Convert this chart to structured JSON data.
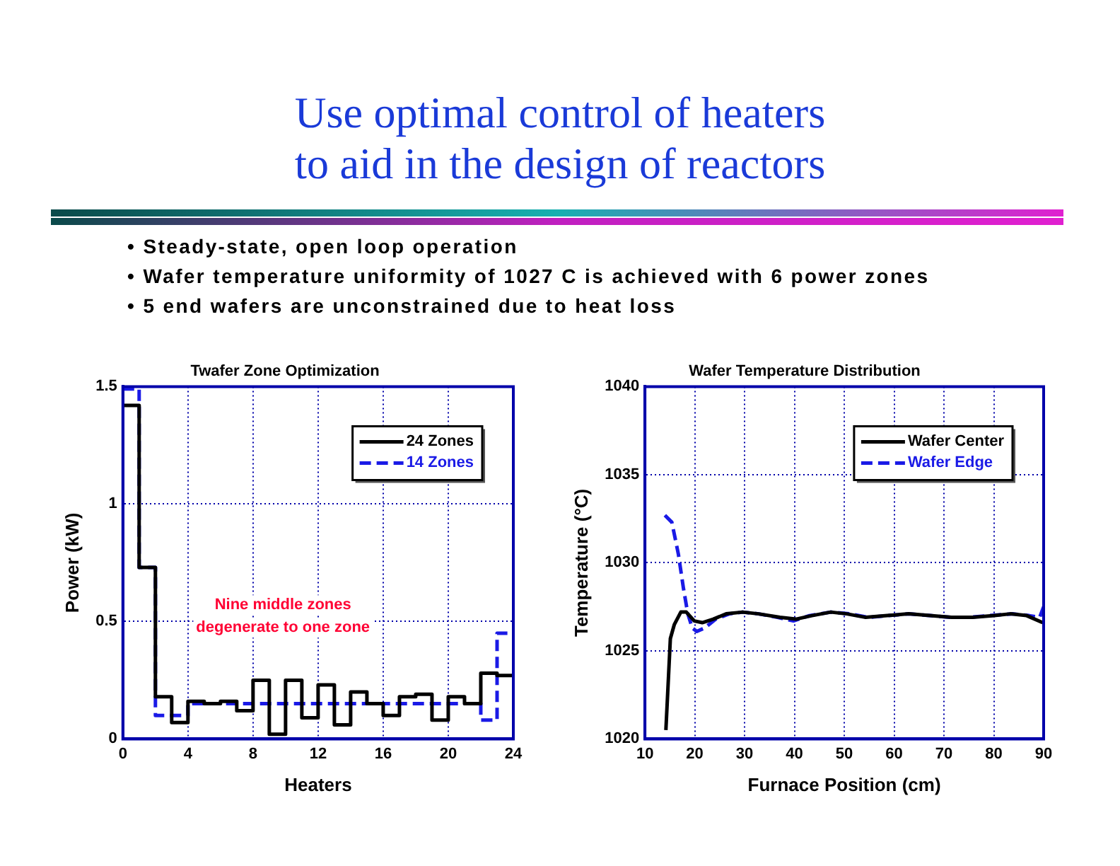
{
  "chart_data": [
    {
      "type": "other",
      "title": "Use optimal control of heaters\nto aid in the design of reactors",
      "annotations": [
        "• Steady-state, open loop operation",
        "• Wafer temperature uniformity of 1027 C is achieved with 6 power zones",
        "• 5 end wafers are unconstrained due to heat loss"
      ]
    },
    {
      "type": "step",
      "title": "Twafer Zone Optimization",
      "xlabel": "Heaters",
      "ylabel": "Power (kW)",
      "x": [
        0,
        1,
        2,
        3,
        4,
        5,
        6,
        7,
        8,
        9,
        10,
        11,
        12,
        13,
        14,
        15,
        16,
        17,
        18,
        19,
        20,
        21,
        22,
        23,
        24
      ],
      "series": [
        {
          "name": "24 Zones",
          "color": "#000000",
          "line_style": "solid",
          "values": [
            1.42,
            0.73,
            0.18,
            0.07,
            0.16,
            0.15,
            0.16,
            0.12,
            0.25,
            0.02,
            0.25,
            0.09,
            0.23,
            0.06,
            0.2,
            0.15,
            0.1,
            0.18,
            0.19,
            0.08,
            0.18,
            0.15,
            0.28,
            0.27,
            0.27
          ]
        },
        {
          "name": "14 Zones",
          "color": "#1a1ae6",
          "line_style": "dashed",
          "values": [
            1.49,
            0.73,
            0.1,
            0.1,
            0.15,
            0.15,
            0.15,
            0.15,
            0.15,
            0.15,
            0.15,
            0.15,
            0.15,
            0.15,
            0.15,
            0.15,
            0.15,
            0.15,
            0.15,
            0.15,
            0.15,
            0.15,
            0.08,
            0.45,
            0.45
          ]
        }
      ],
      "xlim": [
        0,
        24
      ],
      "xticks": [
        0,
        4,
        8,
        12,
        16,
        20,
        24
      ],
      "ylim": [
        0,
        1.5
      ],
      "yticks": [
        0,
        0.5,
        1,
        1.5
      ],
      "grid": true,
      "legend": "top right",
      "marker": "none",
      "annotations": [
        "Nine middle zones degenerate to one zone"
      ]
    },
    {
      "type": "line",
      "title": "Wafer Temperature Distribution",
      "xlabel": "Furnace Position (cm)",
      "ylabel": "Temperature (°C)",
      "series": [
        {
          "name": "Wafer Center",
          "color": "#000000",
          "line_style": "solid",
          "x": [
            14.2,
            15.1,
            15.9,
            17.2,
            18.3,
            19.9,
            21.5,
            23.7,
            26.3,
            29.6,
            32.8,
            37.1,
            40.3,
            43.5,
            47.3,
            50.5,
            54.3,
            58.6,
            62.9,
            67.2,
            71.5,
            75.8,
            80.1,
            83.3,
            86.6,
            89.8
          ],
          "values": [
            1020.5,
            1025.7,
            1026.5,
            1027.2,
            1027.2,
            1026.7,
            1026.6,
            1026.8,
            1027.1,
            1027.2,
            1027.1,
            1026.9,
            1026.8,
            1027,
            1027.2,
            1027.1,
            1026.9,
            1027,
            1027.1,
            1027,
            1026.9,
            1026.9,
            1027,
            1027.1,
            1027,
            1026.6
          ]
        },
        {
          "name": "Wafer Edge",
          "color": "#1a1ae6",
          "line_style": "dashed",
          "x": [
            14,
            15.4,
            16.7,
            17.7,
            18.6,
            19.5,
            20.4,
            22,
            24.2,
            26.9,
            29.6,
            32.8,
            36.6,
            39.8,
            43,
            47.3,
            51.1,
            54.8,
            58.6,
            62.9,
            67.2,
            71.5,
            74.7,
            79,
            83.9,
            87.1,
            89.2,
            90
          ],
          "values": [
            1032.7,
            1032.3,
            1030.5,
            1028.6,
            1027.1,
            1026.3,
            1026.1,
            1026.3,
            1026.8,
            1027.1,
            1027.2,
            1027.1,
            1026.9,
            1026.7,
            1027,
            1027.2,
            1027.1,
            1026.9,
            1027,
            1027.1,
            1027,
            1026.9,
            1026.9,
            1027,
            1027.1,
            1027,
            1026.9,
            1027.5
          ]
        }
      ],
      "xlim": [
        10,
        90
      ],
      "xticks": [
        10,
        20,
        30,
        40,
        50,
        60,
        70,
        80,
        90
      ],
      "ylim": [
        1020,
        1040
      ],
      "yticks": [
        1020,
        1025,
        1030,
        1035,
        1040
      ],
      "grid": true,
      "legend": "top right",
      "marker": "none"
    }
  ]
}
